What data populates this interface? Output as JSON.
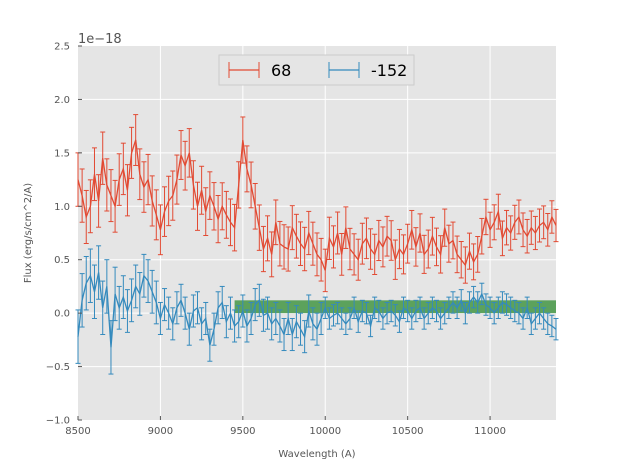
{
  "chart_data": {
    "type": "line",
    "title": "",
    "xlabel": "Wavelength (A)",
    "ylabel": "Flux (erg/s/cm^2/A)",
    "offset_label": "1e−18",
    "xlim": [
      8500,
      11400
    ],
    "ylim": [
      -1.0,
      2.5
    ],
    "y_scale": 1e-18,
    "xticks": [
      8500,
      9000,
      9500,
      10000,
      10500,
      11000
    ],
    "yticks": [
      -1.0,
      -0.5,
      0.0,
      0.5,
      1.0,
      1.5,
      2.0,
      2.5
    ],
    "ytick_labels": [
      "−1.0",
      "−0.5",
      "0.0",
      "0.5",
      "1.0",
      "1.5",
      "2.0",
      "2.5"
    ],
    "grid": true,
    "legend_position": "top-center",
    "band": {
      "x": [
        9450,
        11400
      ],
      "y": [
        0.0,
        0.12
      ],
      "color": "#348ABD"
    },
    "colors": {
      "background": "#E5E5E5",
      "grid": "#ffffff",
      "series1": "#E24A33",
      "series2": "#348ABD",
      "band": "#4C9A4C"
    },
    "series": [
      {
        "name": "68",
        "color": "#E24A33",
        "x": [
          8500,
          8525,
          8550,
          8575,
          8600,
          8625,
          8650,
          8675,
          8700,
          8725,
          8750,
          8775,
          8800,
          8825,
          8850,
          8875,
          8900,
          8925,
          8950,
          8975,
          9000,
          9025,
          9050,
          9075,
          9100,
          9125,
          9150,
          9175,
          9200,
          9225,
          9250,
          9275,
          9300,
          9325,
          9350,
          9375,
          9400,
          9425,
          9450,
          9475,
          9500,
          9525,
          9550,
          9575,
          9600,
          9625,
          9650,
          9675,
          9700,
          9725,
          9750,
          9775,
          9800,
          9825,
          9850,
          9875,
          9900,
          9925,
          9950,
          9975,
          10000,
          10025,
          10050,
          10075,
          10100,
          10125,
          10150,
          10175,
          10200,
          10225,
          10250,
          10275,
          10300,
          10325,
          10350,
          10375,
          10400,
          10425,
          10450,
          10475,
          10500,
          10525,
          10550,
          10575,
          10600,
          10625,
          10650,
          10675,
          10700,
          10725,
          10750,
          10775,
          10800,
          10825,
          10850,
          10875,
          10900,
          10925,
          10950,
          10975,
          11000,
          11025,
          11050,
          11075,
          11100,
          11125,
          11150,
          11175,
          11200,
          11225,
          11250,
          11275,
          11300,
          11325,
          11350,
          11375,
          11400
        ],
        "values": [
          1.25,
          1.1,
          0.9,
          1.0,
          1.3,
          1.05,
          1.45,
          1.2,
          1.1,
          1.0,
          1.25,
          1.35,
          1.15,
          1.5,
          1.62,
          1.3,
          1.18,
          1.25,
          1.05,
          0.92,
          0.78,
          0.95,
          1.05,
          1.1,
          1.25,
          1.48,
          1.38,
          1.5,
          1.2,
          1.0,
          1.15,
          0.95,
          1.1,
          1.0,
          0.88,
          1.0,
          0.92,
          0.85,
          0.8,
          1.2,
          1.62,
          1.35,
          1.2,
          1.0,
          0.8,
          0.6,
          0.7,
          0.55,
          0.85,
          0.65,
          0.62,
          0.6,
          0.8,
          0.72,
          0.65,
          0.6,
          0.75,
          0.65,
          0.55,
          0.5,
          0.4,
          0.7,
          0.62,
          0.75,
          0.55,
          0.8,
          0.6,
          0.55,
          0.5,
          0.65,
          0.7,
          0.6,
          0.55,
          0.68,
          0.62,
          0.72,
          0.68,
          0.5,
          0.6,
          0.55,
          0.65,
          0.78,
          0.62,
          0.75,
          0.55,
          0.6,
          0.72,
          0.62,
          0.55,
          0.8,
          0.65,
          0.68,
          0.55,
          0.5,
          0.45,
          0.58,
          0.48,
          0.55,
          0.72,
          0.9,
          0.78,
          0.85,
          0.95,
          0.7,
          0.8,
          0.75,
          0.85,
          0.9,
          0.78,
          0.72,
          0.8,
          0.75,
          0.82,
          0.85,
          0.78,
          0.9,
          0.82
        ]
      },
      {
        "name": "-152",
        "color": "#348ABD",
        "x": [
          8500,
          8525,
          8550,
          8575,
          8600,
          8625,
          8650,
          8675,
          8700,
          8725,
          8750,
          8775,
          8800,
          8825,
          8850,
          8875,
          8900,
          8925,
          8950,
          8975,
          9000,
          9025,
          9050,
          9075,
          9100,
          9125,
          9150,
          9175,
          9200,
          9225,
          9250,
          9275,
          9300,
          9325,
          9350,
          9375,
          9400,
          9425,
          9450,
          9475,
          9500,
          9525,
          9550,
          9575,
          9600,
          9625,
          9650,
          9675,
          9700,
          9725,
          9750,
          9775,
          9800,
          9825,
          9850,
          9875,
          9900,
          9925,
          9950,
          9975,
          10000,
          10025,
          10050,
          10075,
          10100,
          10125,
          10150,
          10175,
          10200,
          10225,
          10250,
          10275,
          10300,
          10325,
          10350,
          10375,
          10400,
          10425,
          10450,
          10475,
          10500,
          10525,
          10550,
          10575,
          10600,
          10625,
          10650,
          10675,
          10700,
          10725,
          10750,
          10775,
          10800,
          10825,
          10850,
          10875,
          10900,
          10925,
          10950,
          10975,
          11000,
          11025,
          11050,
          11075,
          11100,
          11125,
          11150,
          11175,
          11200,
          11225,
          11250,
          11275,
          11300,
          11325,
          11350,
          11375,
          11400
        ],
        "values": [
          -0.22,
          0.12,
          0.28,
          0.35,
          0.2,
          0.38,
          0.05,
          0.25,
          -0.32,
          0.18,
          0.05,
          0.15,
          0.02,
          0.12,
          0.25,
          0.18,
          0.35,
          0.3,
          0.2,
          0.1,
          -0.05,
          0.08,
          0.0,
          -0.1,
          0.05,
          0.12,
          0.0,
          -0.15,
          0.02,
          0.05,
          -0.1,
          -0.05,
          -0.3,
          -0.15,
          0.05,
          0.1,
          -0.08,
          0.0,
          -0.12,
          -0.08,
          0.02,
          -0.12,
          -0.05,
          0.08,
          0.12,
          -0.02,
          0.0,
          -0.1,
          -0.05,
          -0.12,
          -0.2,
          -0.05,
          -0.2,
          -0.08,
          -0.15,
          -0.22,
          0.02,
          -0.1,
          -0.15,
          -0.05,
          0.05,
          -0.05,
          -0.02,
          0.0,
          -0.05,
          -0.1,
          -0.05,
          0.05,
          -0.08,
          0.02,
          0.0,
          -0.12,
          0.05,
          0.02,
          -0.05,
          0.0,
          0.02,
          -0.02,
          -0.08,
          0.05,
          0.02,
          -0.05,
          0.02,
          0.05,
          -0.05,
          0.0,
          0.05,
          0.02,
          -0.05,
          0.0,
          0.05,
          0.1,
          0.05,
          0.12,
          0.0,
          0.1,
          0.15,
          0.1,
          0.18,
          0.08,
          0.05,
          0.0,
          0.05,
          0.1,
          0.08,
          0.05,
          0.02,
          0.0,
          -0.05,
          0.05,
          -0.1,
          -0.05,
          0.0,
          -0.05,
          -0.1,
          -0.12,
          -0.15
        ],
        "errors": [
          0.25,
          0.25,
          0.25,
          0.25,
          0.25,
          0.25,
          0.25,
          0.25,
          0.25,
          0.25,
          0.2,
          0.2,
          0.2,
          0.2,
          0.2,
          0.2,
          0.2,
          0.2,
          0.2,
          0.2,
          0.15,
          0.15,
          0.15,
          0.15,
          0.15,
          0.15,
          0.15,
          0.15,
          0.15,
          0.15,
          0.15,
          0.15,
          0.15,
          0.15,
          0.15,
          0.15,
          0.15,
          0.15,
          0.15,
          0.15,
          0.15,
          0.15,
          0.15,
          0.15,
          0.15,
          0.15,
          0.15,
          0.15,
          0.15,
          0.15,
          0.15,
          0.15,
          0.15,
          0.15,
          0.15,
          0.15,
          0.15,
          0.15,
          0.15,
          0.15,
          0.1,
          0.1,
          0.1,
          0.1,
          0.1,
          0.1,
          0.1,
          0.1,
          0.1,
          0.1,
          0.1,
          0.1,
          0.1,
          0.1,
          0.1,
          0.1,
          0.1,
          0.1,
          0.1,
          0.1,
          0.1,
          0.1,
          0.1,
          0.1,
          0.1,
          0.1,
          0.1,
          0.1,
          0.1,
          0.1,
          0.1,
          0.1,
          0.1,
          0.1,
          0.1,
          0.1,
          0.1,
          0.1,
          0.1,
          0.1,
          0.1,
          0.1,
          0.1,
          0.1,
          0.1,
          0.1,
          0.1,
          0.1,
          0.1,
          0.1,
          0.1,
          0.1,
          0.1,
          0.1,
          0.1,
          0.1,
          0.1
        ]
      }
    ]
  }
}
